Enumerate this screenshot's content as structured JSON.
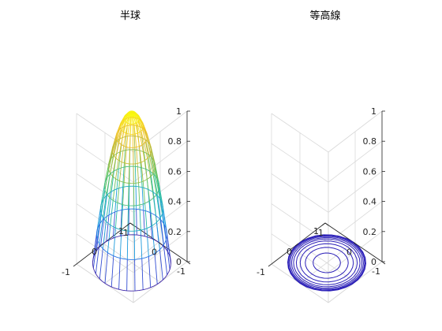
{
  "chart_data": [
    {
      "type": "surface",
      "plot": "mesh",
      "title": "半球",
      "xlabel": "",
      "ylabel": "",
      "zlabel": "",
      "function": "z = 1 - (x^2 + y^2) for x^2 + y^2 <= 1",
      "domain": "unit disk",
      "xlim": [
        -1,
        1
      ],
      "ylim": [
        -1,
        1
      ],
      "zlim": [
        0,
        1
      ],
      "x_ticks": [
        "-1",
        "0",
        "1"
      ],
      "y_ticks": [
        "-1",
        "0",
        "1"
      ],
      "z_ticks": [
        "0",
        "0.2",
        "0.4",
        "0.6",
        "0.8",
        "1"
      ],
      "mesh": {
        "rings": 10,
        "spokes": 30
      },
      "colormap": [
        "#3e26a8",
        "#2f64e8",
        "#1a9edb",
        "#27bba6",
        "#62c363",
        "#b4bb3b",
        "#f2c12c",
        "#f9fb0e"
      ],
      "grid": true
    },
    {
      "type": "contour3",
      "title": "等高線",
      "xlabel": "",
      "ylabel": "",
      "zlabel": "",
      "xlim": [
        -1,
        1
      ],
      "ylim": [
        -1,
        1
      ],
      "zlim": [
        0,
        1
      ],
      "x_ticks": [
        "-1",
        "0",
        "1"
      ],
      "y_ticks": [
        "-1",
        "0",
        "1"
      ],
      "z_ticks": [
        "0",
        "0.2",
        "0.4",
        "0.6",
        "0.8",
        "1"
      ],
      "contour_radii": [
        0.35,
        0.55,
        0.68,
        0.78,
        0.85,
        0.9,
        0.94,
        0.97,
        0.99,
        1.0
      ],
      "contour_z": 0,
      "line_color": "#2b1fb8",
      "grid": true
    }
  ]
}
